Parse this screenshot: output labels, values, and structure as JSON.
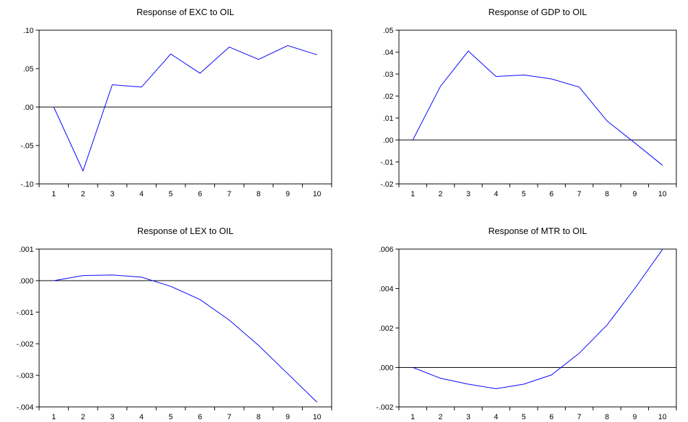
{
  "chart_data": [
    {
      "type": "line",
      "title": "Response of EXC to OIL",
      "x": [
        1,
        2,
        3,
        4,
        5,
        6,
        7,
        8,
        9,
        10
      ],
      "series": [
        {
          "values": [
            0.0,
            -0.083,
            0.029,
            0.026,
            0.069,
            0.044,
            0.078,
            0.062,
            0.08,
            0.068
          ]
        }
      ],
      "ylim": [
        -0.1,
        0.1
      ],
      "yticks": [
        -0.1,
        -0.05,
        0.0,
        0.05,
        0.1
      ],
      "ytick_labels": [
        "-.10",
        "-.05",
        ".00",
        ".05",
        ".10"
      ],
      "xtick_labels": [
        "1",
        "2",
        "3",
        "4",
        "5",
        "6",
        "7",
        "8",
        "9",
        "10"
      ],
      "zero_line": true,
      "line_color": "#0000ff"
    },
    {
      "type": "line",
      "title": "Response of GDP to OIL",
      "x": [
        1,
        2,
        3,
        4,
        5,
        6,
        7,
        8,
        9,
        10
      ],
      "series": [
        {
          "values": [
            0.0,
            0.0245,
            0.0405,
            0.0289,
            0.0296,
            0.0278,
            0.0241,
            0.0087,
            -0.0013,
            -0.0115
          ]
        }
      ],
      "ylim": [
        -0.02,
        0.05
      ],
      "yticks": [
        -0.02,
        -0.01,
        0.0,
        0.01,
        0.02,
        0.03,
        0.04,
        0.05
      ],
      "ytick_labels": [
        "-.02",
        "-.01",
        ".00",
        ".01",
        ".02",
        ".03",
        ".04",
        ".05"
      ],
      "xtick_labels": [
        "1",
        "2",
        "3",
        "4",
        "5",
        "6",
        "7",
        "8",
        "9",
        "10"
      ],
      "zero_line": true,
      "line_color": "#0000ff"
    },
    {
      "type": "line",
      "title": "Response of LEX to OIL",
      "x": [
        1,
        2,
        3,
        4,
        5,
        6,
        7,
        8,
        9,
        10
      ],
      "series": [
        {
          "values": [
            0.0,
            0.00016,
            0.00018,
            0.00011,
            -0.00018,
            -0.0006,
            -0.00125,
            -0.00205,
            -0.00295,
            -0.00385
          ]
        }
      ],
      "ylim": [
        -0.004,
        0.001
      ],
      "yticks": [
        -0.004,
        -0.003,
        -0.002,
        -0.001,
        0.0,
        0.001
      ],
      "ytick_labels": [
        "-.004",
        "-.003",
        "-.002",
        "-.001",
        ".000",
        ".001"
      ],
      "xtick_labels": [
        "1",
        "2",
        "3",
        "4",
        "5",
        "6",
        "7",
        "8",
        "9",
        "10"
      ],
      "zero_line": true,
      "line_color": "#0000ff"
    },
    {
      "type": "line",
      "title": "Response of MTR to OIL",
      "x": [
        1,
        2,
        3,
        4,
        5,
        6,
        7,
        8,
        9,
        10
      ],
      "series": [
        {
          "values": [
            0.0,
            -0.00055,
            -0.00085,
            -0.00108,
            -0.00085,
            -0.00038,
            0.00072,
            0.00215,
            0.004,
            0.00598
          ]
        }
      ],
      "ylim": [
        -0.002,
        0.006
      ],
      "yticks": [
        -0.002,
        0.0,
        0.002,
        0.004,
        0.006
      ],
      "ytick_labels": [
        "-.002",
        ".000",
        ".002",
        ".004",
        ".006"
      ],
      "xtick_labels": [
        "1",
        "2",
        "3",
        "4",
        "5",
        "6",
        "7",
        "8",
        "9",
        "10"
      ],
      "zero_line": true,
      "line_color": "#0000ff"
    }
  ]
}
